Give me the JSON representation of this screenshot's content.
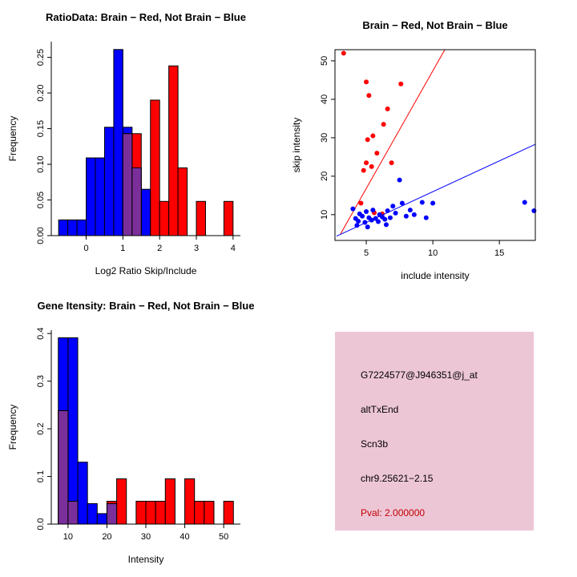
{
  "page": {
    "background": "#ffffff"
  },
  "colors": {
    "brain": "#ff0000",
    "not_brain": "#0000ff",
    "overlap": "#7a2f9b",
    "pval": "#c00000",
    "info_bg": "#edc6d6"
  },
  "chart_data": [
    {
      "id": "ratio-hist",
      "type": "bar",
      "title": "RatioData: Brain − Red, Not Brain − Blue",
      "xlabel": "Log2 Ratio Skip/Include",
      "ylabel": "Frequency",
      "xlim": [
        -0.95,
        4.2
      ],
      "ylim": [
        0,
        0.272
      ],
      "box": false,
      "grid": false,
      "bin_width": 0.25,
      "overlap_color": "#7a2f9b",
      "margins": {
        "l": 64,
        "r": 60,
        "t": 52,
        "b": 66
      },
      "xticks": [
        {
          "v": 0,
          "label": "0"
        },
        {
          "v": 1,
          "label": "1"
        },
        {
          "v": 2,
          "label": "2"
        },
        {
          "v": 3,
          "label": "3"
        },
        {
          "v": 4,
          "label": "4"
        }
      ],
      "yticks": [
        {
          "v": 0,
          "label": "0.00"
        },
        {
          "v": 0.05,
          "label": "0.05"
        },
        {
          "v": 0.1,
          "label": "0.10"
        },
        {
          "v": 0.15,
          "label": "0.15"
        },
        {
          "v": 0.2,
          "label": "0.20"
        },
        {
          "v": 0.25,
          "label": "0.25"
        }
      ],
      "series": [
        {
          "name": "Not Brain (blue)",
          "color": "#0000ff",
          "bins": [
            {
              "x": -0.75,
              "h": 0.022
            },
            {
              "x": -0.5,
              "h": 0.022
            },
            {
              "x": -0.25,
              "h": 0.022
            },
            {
              "x": 0,
              "h": 0.109
            },
            {
              "x": 0.25,
              "h": 0.109
            },
            {
              "x": 0.5,
              "h": 0.152
            },
            {
              "x": 0.75,
              "h": 0.261
            },
            {
              "x": 1.0,
              "h": 0.152
            },
            {
              "x": 1.25,
              "h": 0.095
            },
            {
              "x": 1.5,
              "h": 0.065
            }
          ]
        },
        {
          "name": "Brain (red)",
          "color": "#ff0000",
          "bins": [
            {
              "x": 1.0,
              "h": 0.143
            },
            {
              "x": 1.25,
              "h": 0.143
            },
            {
              "x": 1.75,
              "h": 0.19
            },
            {
              "x": 2.0,
              "h": 0.048
            },
            {
              "x": 2.25,
              "h": 0.238
            },
            {
              "x": 2.5,
              "h": 0.095
            },
            {
              "x": 3.0,
              "h": 0.048
            },
            {
              "x": 3.75,
              "h": 0.048
            }
          ]
        }
      ]
    },
    {
      "id": "scatter",
      "type": "scatter",
      "title": "Brain − Red, Not Brain − Blue",
      "xlabel": "include intensity",
      "ylabel": "skip intensity",
      "xlim": [
        2.65,
        17.7
      ],
      "ylim": [
        3.3,
        52.9
      ],
      "box": true,
      "grid": false,
      "margins": {
        "l": 58,
        "r": 52,
        "t": 62,
        "b": 60
      },
      "xticks": [
        {
          "v": 5,
          "label": "5"
        },
        {
          "v": 10,
          "label": "10"
        },
        {
          "v": 15,
          "label": "15"
        }
      ],
      "yticks": [
        {
          "v": 10,
          "label": "10"
        },
        {
          "v": 20,
          "label": "20"
        },
        {
          "v": 30,
          "label": "30"
        },
        {
          "v": 40,
          "label": "40"
        },
        {
          "v": 50,
          "label": "50"
        }
      ],
      "series": [
        {
          "name": "Brain (red)",
          "color": "#ff0000",
          "line": [
            3.07,
            5,
            10.9,
            52.9
          ],
          "points": [
            [
              3.3,
              52
            ],
            [
              5.0,
              44.5
            ],
            [
              5.2,
              41
            ],
            [
              7.6,
              44
            ],
            [
              6.6,
              37.5
            ],
            [
              6.3,
              33.5
            ],
            [
              5.5,
              30.5
            ],
            [
              5.1,
              29.5
            ],
            [
              5.8,
              26
            ],
            [
              5.0,
              23.5
            ],
            [
              5.4,
              22.5
            ],
            [
              4.8,
              21.5
            ],
            [
              6.9,
              23.5
            ],
            [
              4.6,
              13
            ],
            [
              5.6,
              10.5
            ],
            [
              6.2,
              10.2
            ]
          ]
        },
        {
          "name": "Not Brain (blue)",
          "color": "#0000ff",
          "line": [
            2.77,
            4.4,
            17.7,
            28.3
          ],
          "points": [
            [
              4.0,
              11.5
            ],
            [
              4.2,
              9.0
            ],
            [
              4.4,
              8.3
            ],
            [
              4.5,
              10.2
            ],
            [
              4.7,
              9.6
            ],
            [
              4.9,
              8.0
            ],
            [
              5.0,
              10.8
            ],
            [
              5.2,
              9.2
            ],
            [
              5.4,
              8.6
            ],
            [
              5.5,
              11.2
            ],
            [
              5.7,
              9.0
            ],
            [
              5.9,
              8.2
            ],
            [
              6.0,
              10.0
            ],
            [
              6.2,
              9.4
            ],
            [
              6.4,
              8.8
            ],
            [
              6.6,
              11.0
            ],
            [
              6.8,
              9.2
            ],
            [
              7.0,
              12.2
            ],
            [
              7.2,
              10.4
            ],
            [
              7.5,
              19.0
            ],
            [
              7.7,
              13.0
            ],
            [
              8.0,
              9.6
            ],
            [
              8.3,
              11.2
            ],
            [
              8.6,
              10.0
            ],
            [
              9.2,
              13.2
            ],
            [
              9.5,
              9.2
            ],
            [
              10.0,
              13.0
            ],
            [
              4.3,
              7.2
            ],
            [
              5.1,
              6.8
            ],
            [
              6.5,
              7.4
            ],
            [
              16.9,
              13.2
            ],
            [
              17.6,
              11.0
            ]
          ]
        }
      ]
    },
    {
      "id": "gene-hist",
      "type": "bar",
      "title": "Gene Itensity: Brain − Red, Not Brain − Blue",
      "xlabel": "Intensity",
      "ylabel": "Frequency",
      "xlim": [
        5.7,
        54.3
      ],
      "ylim": [
        0,
        0.407
      ],
      "box": false,
      "grid": false,
      "bin_width": 2.5,
      "overlap_color": "#7a2f9b",
      "margins": {
        "l": 64,
        "r": 60,
        "t": 52,
        "b": 66
      },
      "xticks": [
        {
          "v": 10,
          "label": "10"
        },
        {
          "v": 20,
          "label": "20"
        },
        {
          "v": 30,
          "label": "30"
        },
        {
          "v": 40,
          "label": "40"
        },
        {
          "v": 50,
          "label": "50"
        }
      ],
      "yticks": [
        {
          "v": 0,
          "label": "0.0"
        },
        {
          "v": 0.1,
          "label": "0.1"
        },
        {
          "v": 0.2,
          "label": "0.2"
        },
        {
          "v": 0.3,
          "label": "0.3"
        },
        {
          "v": 0.4,
          "label": "0.4"
        }
      ],
      "series": [
        {
          "name": "Not Brain (blue)",
          "color": "#0000ff",
          "bins": [
            {
              "x": 7.5,
              "h": 0.391
            },
            {
              "x": 10,
              "h": 0.391
            },
            {
              "x": 12.5,
              "h": 0.13
            },
            {
              "x": 15,
              "h": 0.043
            },
            {
              "x": 17.5,
              "h": 0.022
            },
            {
              "x": 20,
              "h": 0.043
            }
          ]
        },
        {
          "name": "Brain (red)",
          "color": "#ff0000",
          "bins": [
            {
              "x": 7.5,
              "h": 0.238
            },
            {
              "x": 10,
              "h": 0.048
            },
            {
              "x": 20,
              "h": 0.048
            },
            {
              "x": 22.5,
              "h": 0.095
            },
            {
              "x": 27.5,
              "h": 0.048
            },
            {
              "x": 30,
              "h": 0.048
            },
            {
              "x": 32.5,
              "h": 0.048
            },
            {
              "x": 35,
              "h": 0.095
            },
            {
              "x": 40,
              "h": 0.095
            },
            {
              "x": 42.5,
              "h": 0.048
            },
            {
              "x": 45,
              "h": 0.048
            },
            {
              "x": 50,
              "h": 0.048
            }
          ]
        }
      ]
    }
  ],
  "info_box": {
    "bg": "#edc6d6",
    "lines": [
      {
        "text": "G7224577@J946351@j_at",
        "color": "#000000"
      },
      {
        "text": "altTxEnd",
        "color": "#000000"
      },
      {
        "text": "Scn3b",
        "color": "#000000"
      },
      {
        "text": "chr9.25621−2.15",
        "color": "#000000"
      },
      {
        "text": "Pval: 2.000000",
        "color": "#c00000"
      }
    ]
  }
}
